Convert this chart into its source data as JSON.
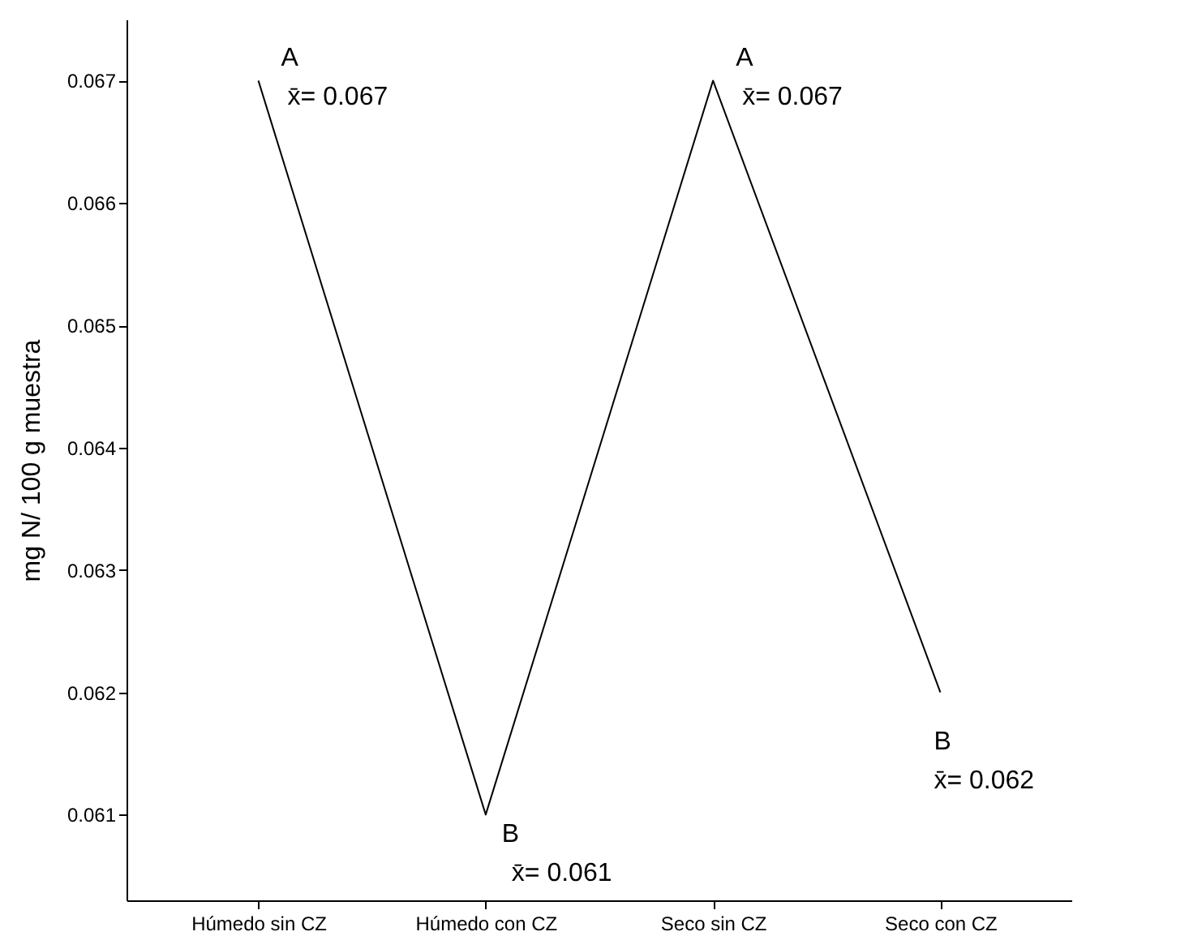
{
  "chart_data": {
    "type": "line",
    "ylabel": "mg N/ 100 g muestra",
    "categories": [
      "Húmedo sin CZ",
      "Húmedo con CZ",
      "Seco sin CZ",
      "Seco con CZ"
    ],
    "series": [
      {
        "color": "#000000",
        "values": [
          0.067,
          0.061,
          0.067,
          0.062
        ]
      }
    ],
    "ylim": [
      0.0603,
      0.0675
    ],
    "yticks": [
      0.061,
      0.062,
      0.063,
      0.064,
      0.065,
      0.066,
      0.067
    ],
    "grid": false,
    "legend": false,
    "marker": "none",
    "line_style": "solid",
    "annotations": [
      {
        "text": "A",
        "x": "Húmedo sin CZ",
        "y": 0.067
      },
      {
        "text": "x̄= 0.067",
        "x": "Húmedo sin CZ",
        "y": 0.067
      },
      {
        "text": "B",
        "x": "Húmedo con CZ",
        "y": 0.061
      },
      {
        "text": "x̄= 0.061",
        "x": "Húmedo con CZ",
        "y": 0.061
      },
      {
        "text": "A",
        "x": "Seco sin CZ",
        "y": 0.067
      },
      {
        "text": "x̄= 0.067",
        "x": "Seco sin CZ",
        "y": 0.067
      },
      {
        "text": "B",
        "x": "Seco con CZ",
        "y": 0.062
      },
      {
        "text": "x̄= 0.062",
        "x": "Seco con CZ",
        "y": 0.062
      }
    ]
  }
}
